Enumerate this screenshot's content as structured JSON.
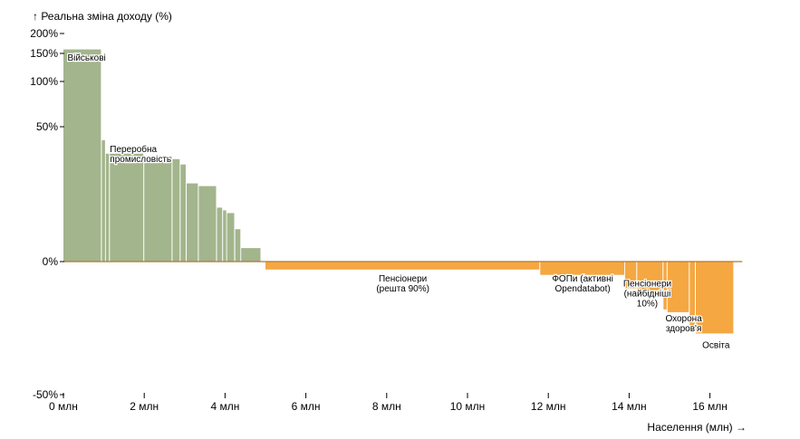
{
  "chart_data": {
    "type": "bar",
    "subtype": "variable-width bar (Marimekko)",
    "ylabel": "↑ Реальна зміна доходу (%)",
    "xlabel": "Населення (млн) →",
    "x_range": [
      0,
      16.8
    ],
    "y_tick_values": [
      -50,
      0,
      50,
      100,
      150,
      200
    ],
    "y_tick_labels": [
      "-50%",
      "0%",
      "50%",
      "100%",
      "150%",
      "200%"
    ],
    "x_tick_values": [
      0,
      2,
      4,
      6,
      8,
      10,
      12,
      14,
      16
    ],
    "x_tick_labels": [
      "0 млн",
      "2 млн",
      "4 млн",
      "6 млн",
      "8 млн",
      "10 млн",
      "12 млн",
      "14 млн",
      "16 млн"
    ],
    "y_scale": "nonlinear (compressed above 50%)",
    "colors": {
      "positive": "#a3b58c",
      "negative": "#f5a742",
      "zero_line": "#b07830"
    },
    "groups": [
      {
        "x0": 0.0,
        "x1": 0.95,
        "value": 160
      },
      {
        "x0": 0.95,
        "x1": 1.05,
        "value": 45
      },
      {
        "x0": 1.05,
        "x1": 1.15,
        "value": 40
      },
      {
        "x0": 1.15,
        "x1": 2.0,
        "value": 40
      },
      {
        "x0": 2.0,
        "x1": 2.7,
        "value": 39
      },
      {
        "x0": 2.7,
        "x1": 2.9,
        "value": 38
      },
      {
        "x0": 2.9,
        "x1": 3.05,
        "value": 36
      },
      {
        "x0": 3.05,
        "x1": 3.35,
        "value": 29
      },
      {
        "x0": 3.35,
        "x1": 3.8,
        "value": 28
      },
      {
        "x0": 3.8,
        "x1": 3.95,
        "value": 20
      },
      {
        "x0": 3.95,
        "x1": 4.05,
        "value": 19
      },
      {
        "x0": 4.05,
        "x1": 4.25,
        "value": 18
      },
      {
        "x0": 4.25,
        "x1": 4.4,
        "value": 12
      },
      {
        "x0": 4.4,
        "x1": 4.9,
        "value": 5
      },
      {
        "x0": 5.0,
        "x1": 11.8,
        "value": -3
      },
      {
        "x0": 11.8,
        "x1": 13.9,
        "value": -5
      },
      {
        "x0": 13.9,
        "x1": 14.2,
        "value": -10
      },
      {
        "x0": 14.2,
        "x1": 14.85,
        "value": -13
      },
      {
        "x0": 14.85,
        "x1": 14.95,
        "value": -18
      },
      {
        "x0": 14.95,
        "x1": 15.5,
        "value": -19
      },
      {
        "x0": 15.5,
        "x1": 15.65,
        "value": -26
      },
      {
        "x0": 15.65,
        "x1": 16.6,
        "value": -27
      }
    ],
    "annotations": [
      {
        "lines": [
          "Військові"
        ],
        "x": 0.1,
        "y": 155,
        "anchor": "start"
      },
      {
        "lines": [
          "Переробна",
          "промисловість"
        ],
        "x": 1.15,
        "y": 44,
        "anchor": "start"
      },
      {
        "lines": [
          "Пенсіонери",
          "(решта 90%)"
        ],
        "x": 8.4,
        "y": -4,
        "anchor": "middle"
      },
      {
        "lines": [
          "ФОПи (активні",
          "Opendatabot)"
        ],
        "x": 12.85,
        "y": -4,
        "anchor": "middle"
      },
      {
        "lines": [
          "Пенсіонери",
          "(найбідніші",
          "10%)"
        ],
        "x": 14.45,
        "y": -6,
        "anchor": "middle"
      },
      {
        "lines": [
          "Охорона",
          "здоров'я"
        ],
        "x": 15.35,
        "y": -19,
        "anchor": "middle"
      },
      {
        "lines": [
          "Освіта"
        ],
        "x": 16.15,
        "y": -29,
        "anchor": "middle"
      }
    ]
  }
}
